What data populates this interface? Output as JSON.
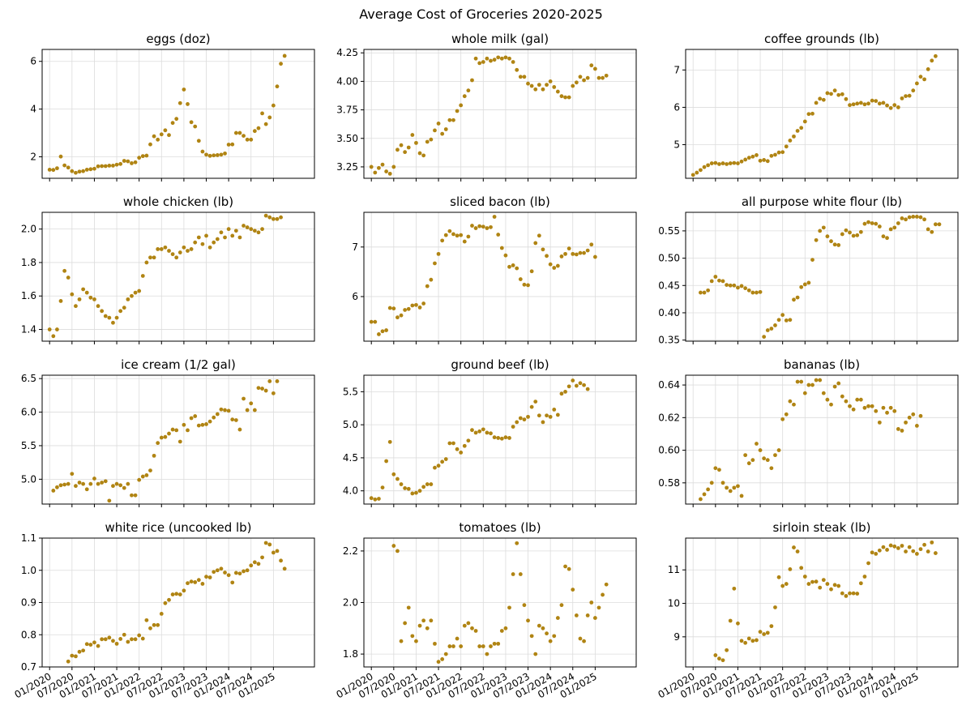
{
  "figure": {
    "title": "Average Cost of Groceries 2020-2025"
  },
  "colors": {
    "marker": "#b08413",
    "grid": "#dcdcdc",
    "axis": "#000000"
  },
  "chart_data": [
    {
      "type": "scatter",
      "title": "eggs (doz)",
      "xlim": [
        "2019-11",
        "2025-12"
      ],
      "ylim": [
        1.1,
        6.5
      ],
      "xticks": [
        "01/2020",
        "07/2020",
        "01/2021",
        "07/2021",
        "01/2022",
        "07/2022",
        "01/2023",
        "07/2023",
        "01/2024",
        "07/2024",
        "01/2025"
      ],
      "yticks": [
        2,
        4,
        6
      ],
      "grid": true,
      "x_start": "2020-01",
      "values": [
        1.46,
        1.45,
        1.52,
        2.01,
        1.64,
        1.55,
        1.4,
        1.33,
        1.38,
        1.4,
        1.46,
        1.48,
        1.5,
        1.6,
        1.61,
        1.61,
        1.63,
        1.63,
        1.67,
        1.7,
        1.83,
        1.81,
        1.73,
        1.77,
        1.96,
        2.03,
        2.05,
        2.52,
        2.86,
        2.72,
        2.94,
        3.11,
        2.91,
        3.42,
        3.59,
        4.25,
        4.82,
        4.21,
        3.45,
        3.27,
        2.67,
        2.22,
        2.09,
        2.04,
        2.06,
        2.07,
        2.09,
        2.14,
        2.51,
        2.52,
        3.0,
        3.0,
        2.88,
        2.72,
        2.72,
        3.08,
        3.2,
        3.82,
        3.37,
        3.65,
        4.15,
        4.95,
        5.9,
        6.23
      ]
    },
    {
      "type": "scatter",
      "title": "whole milk (gal)",
      "xlim": [
        "2019-11",
        "2025-12"
      ],
      "ylim": [
        3.15,
        4.28
      ],
      "xticks": [
        "01/2020",
        "07/2020",
        "01/2021",
        "07/2021",
        "01/2022",
        "07/2022",
        "01/2023",
        "07/2023",
        "01/2024",
        "07/2024",
        "01/2025"
      ],
      "yticks": [
        3.25,
        3.5,
        3.75,
        4.0,
        4.25
      ],
      "grid": true,
      "x_start": "2020-01",
      "values": [
        3.25,
        3.2,
        3.24,
        3.27,
        3.21,
        3.19,
        3.25,
        3.4,
        3.44,
        3.38,
        3.42,
        3.53,
        3.46,
        3.37,
        3.35,
        3.47,
        3.49,
        3.57,
        3.63,
        3.54,
        3.58,
        3.66,
        3.66,
        3.74,
        3.79,
        3.87,
        3.92,
        4.01,
        4.2,
        4.16,
        4.17,
        4.2,
        4.18,
        4.19,
        4.21,
        4.2,
        4.21,
        4.2,
        4.17,
        4.1,
        4.04,
        4.04,
        3.98,
        3.96,
        3.93,
        3.97,
        3.93,
        3.97,
        4.0,
        3.95,
        3.91,
        3.87,
        3.86,
        3.86,
        3.96,
        3.99,
        4.04,
        4.01,
        4.03,
        4.14,
        4.11,
        4.03,
        4.03,
        4.05
      ]
    },
    {
      "type": "scatter",
      "title": "coffee grounds (lb)",
      "xlim": [
        "2019-11",
        "2025-12"
      ],
      "ylim": [
        4.1,
        7.55
      ],
      "xticks": [
        "01/2020",
        "07/2020",
        "01/2021",
        "07/2021",
        "01/2022",
        "07/2022",
        "01/2023",
        "07/2023",
        "01/2024",
        "07/2024",
        "01/2025"
      ],
      "yticks": [
        5,
        6,
        7
      ],
      "grid": true,
      "x_start": "2020-01",
      "values": [
        4.19,
        4.25,
        4.32,
        4.4,
        4.45,
        4.5,
        4.51,
        4.48,
        4.5,
        4.48,
        4.5,
        4.51,
        4.5,
        4.55,
        4.6,
        4.65,
        4.68,
        4.72,
        4.57,
        4.59,
        4.56,
        4.7,
        4.73,
        4.79,
        4.8,
        4.95,
        5.11,
        5.22,
        5.37,
        5.45,
        5.62,
        5.82,
        5.83,
        6.12,
        6.23,
        6.2,
        6.38,
        6.36,
        6.45,
        6.33,
        6.35,
        6.22,
        6.06,
        6.08,
        6.1,
        6.12,
        6.08,
        6.1,
        6.18,
        6.17,
        6.1,
        6.12,
        6.05,
        5.98,
        6.06,
        6.0,
        6.24,
        6.3,
        6.31,
        6.45,
        6.64,
        6.82,
        6.75,
        7.02,
        7.25,
        7.37
      ]
    },
    {
      "type": "scatter",
      "title": "whole chicken (lb)",
      "xlim": [
        "2019-11",
        "2025-12"
      ],
      "ylim": [
        1.33,
        2.1
      ],
      "xticks": [
        "01/2020",
        "07/2020",
        "01/2021",
        "07/2021",
        "01/2022",
        "07/2022",
        "01/2023",
        "07/2023",
        "01/2024",
        "07/2024",
        "01/2025"
      ],
      "yticks": [
        1.4,
        1.6,
        1.8,
        2.0
      ],
      "grid": true,
      "x_start": "2020-01",
      "values": [
        1.4,
        1.36,
        1.4,
        1.57,
        1.75,
        1.71,
        1.61,
        1.54,
        1.58,
        1.64,
        1.62,
        1.59,
        1.58,
        1.54,
        1.51,
        1.48,
        1.47,
        1.44,
        1.47,
        1.51,
        1.53,
        1.58,
        1.6,
        1.62,
        1.63,
        1.72,
        1.8,
        1.83,
        1.83,
        1.88,
        1.88,
        1.89,
        1.87,
        1.85,
        1.83,
        1.86,
        1.89,
        1.87,
        1.88,
        1.92,
        1.95,
        1.91,
        1.96,
        1.89,
        1.92,
        1.94,
        1.98,
        1.95,
        2.0,
        1.96,
        1.99,
        1.95,
        2.02,
        2.01,
        2.0,
        1.99,
        1.98,
        2.0,
        2.08,
        2.07,
        2.06,
        2.06,
        2.07
      ]
    },
    {
      "type": "scatter",
      "title": "sliced bacon (lb)",
      "xlim": [
        "2019-11",
        "2025-12"
      ],
      "ylim": [
        5.1,
        7.7
      ],
      "xticks": [
        "01/2020",
        "07/2020",
        "01/2021",
        "07/2021",
        "01/2022",
        "07/2022",
        "01/2023",
        "07/2023",
        "01/2024",
        "07/2024",
        "01/2025"
      ],
      "yticks": [
        6,
        7
      ],
      "grid": true,
      "x_start": "2020-01",
      "values": [
        5.49,
        5.49,
        5.24,
        5.3,
        5.32,
        5.77,
        5.76,
        5.58,
        5.62,
        5.73,
        5.75,
        5.82,
        5.83,
        5.78,
        5.86,
        6.21,
        6.34,
        6.67,
        6.86,
        7.13,
        7.24,
        7.32,
        7.26,
        7.23,
        7.24,
        7.11,
        7.21,
        7.43,
        7.38,
        7.42,
        7.41,
        7.38,
        7.4,
        7.61,
        7.25,
        6.98,
        6.83,
        6.6,
        6.63,
        6.57,
        6.35,
        6.24,
        6.23,
        6.51,
        7.08,
        7.23,
        6.95,
        6.82,
        6.65,
        6.58,
        6.62,
        6.81,
        6.86,
        6.97,
        6.86,
        6.85,
        6.88,
        6.88,
        6.93,
        7.05,
        6.8
      ]
    },
    {
      "type": "scatter",
      "title": "all purpose white flour (lb)",
      "xlim": [
        "2019-11",
        "2025-12"
      ],
      "ylim": [
        0.348,
        0.584
      ],
      "xticks": [
        "01/2020",
        "07/2020",
        "01/2021",
        "07/2021",
        "01/2022",
        "07/2022",
        "01/2023",
        "07/2023",
        "01/2024",
        "07/2024",
        "01/2025"
      ],
      "yticks": [
        0.35,
        0.4,
        0.45,
        0.5,
        0.55
      ],
      "grid": true,
      "x_start": "2020-03",
      "values": [
        0.437,
        0.437,
        0.441,
        0.458,
        0.466,
        0.459,
        0.458,
        0.451,
        0.45,
        0.45,
        0.446,
        0.449,
        0.445,
        0.441,
        0.437,
        0.437,
        0.438,
        0.356,
        0.368,
        0.371,
        0.377,
        0.387,
        0.396,
        0.386,
        0.387,
        0.424,
        0.428,
        0.447,
        0.452,
        0.455,
        0.497,
        0.533,
        0.55,
        0.556,
        0.54,
        0.531,
        0.525,
        0.524,
        0.544,
        0.551,
        0.547,
        0.541,
        0.542,
        0.548,
        0.563,
        0.566,
        0.564,
        0.563,
        0.558,
        0.54,
        0.537,
        0.553,
        0.556,
        0.564,
        0.573,
        0.571,
        0.575,
        0.576,
        0.576,
        0.575,
        0.571,
        0.553,
        0.548,
        0.562,
        0.562
      ]
    },
    {
      "type": "scatter",
      "title": "ice cream (1/2 gal)",
      "xlim": [
        "2019-11",
        "2025-12"
      ],
      "ylim": [
        4.63,
        6.55
      ],
      "xticks": [
        "01/2020",
        "07/2020",
        "01/2021",
        "07/2021",
        "01/2022",
        "07/2022",
        "01/2023",
        "07/2023",
        "01/2024",
        "07/2024",
        "01/2025"
      ],
      "yticks": [
        5.0,
        5.5,
        6.0,
        6.5
      ],
      "grid": true,
      "x_start": "2020-02",
      "values": [
        4.83,
        4.88,
        4.91,
        4.92,
        4.93,
        5.08,
        4.9,
        4.95,
        4.93,
        4.85,
        4.93,
        5.01,
        4.93,
        4.95,
        4.97,
        4.68,
        4.9,
        4.93,
        4.91,
        4.87,
        4.93,
        4.76,
        4.76,
        4.99,
        5.04,
        5.06,
        5.13,
        5.35,
        5.54,
        5.62,
        5.63,
        5.68,
        5.74,
        5.73,
        5.56,
        5.81,
        5.73,
        5.91,
        5.94,
        5.8,
        5.81,
        5.82,
        5.86,
        5.92,
        5.97,
        6.04,
        6.03,
        6.02,
        5.89,
        5.88,
        5.74,
        6.2,
        6.03,
        6.13,
        6.03,
        6.36,
        6.35,
        6.32,
        6.46,
        6.28,
        6.46
      ]
    },
    {
      "type": "scatter",
      "title": "ground beef (lb)",
      "xlim": [
        "2019-11",
        "2025-12"
      ],
      "ylim": [
        3.8,
        5.75
      ],
      "xticks": [
        "01/2020",
        "07/2020",
        "01/2021",
        "07/2021",
        "01/2022",
        "07/2022",
        "01/2023",
        "07/2023",
        "01/2024",
        "07/2024",
        "01/2025"
      ],
      "yticks": [
        4.0,
        4.5,
        5.0,
        5.5
      ],
      "grid": true,
      "x_start": "2020-01",
      "values": [
        3.89,
        3.87,
        3.88,
        4.05,
        4.45,
        4.74,
        4.25,
        4.18,
        4.1,
        4.04,
        4.03,
        3.96,
        3.97,
        4.0,
        4.06,
        4.1,
        4.1,
        4.35,
        4.38,
        4.44,
        4.48,
        4.72,
        4.72,
        4.63,
        4.58,
        4.68,
        4.76,
        4.92,
        4.88,
        4.9,
        4.93,
        4.88,
        4.87,
        4.81,
        4.8,
        4.79,
        4.81,
        4.8,
        4.97,
        5.04,
        5.1,
        5.08,
        5.12,
        5.27,
        5.35,
        5.14,
        5.04,
        5.14,
        5.12,
        5.23,
        5.15,
        5.47,
        5.5,
        5.58,
        5.67,
        5.59,
        5.63,
        5.6,
        5.54
      ]
    },
    {
      "type": "scatter",
      "title": "bananas (lb)",
      "xlim": [
        "2019-11",
        "2025-12"
      ],
      "ylim": [
        0.567,
        0.646
      ],
      "xticks": [
        "01/2020",
        "07/2020",
        "01/2021",
        "07/2021",
        "01/2022",
        "07/2022",
        "01/2023",
        "07/2023",
        "01/2024",
        "07/2024",
        "01/2025"
      ],
      "yticks": [
        0.58,
        0.6,
        0.62,
        0.64
      ],
      "grid": true,
      "x_start": "2020-03",
      "values": [
        0.57,
        0.573,
        0.576,
        0.58,
        0.589,
        0.588,
        0.58,
        0.577,
        0.575,
        0.577,
        0.578,
        0.572,
        0.597,
        0.592,
        0.594,
        0.604,
        0.6,
        0.595,
        0.594,
        0.589,
        0.597,
        0.6,
        0.619,
        0.622,
        0.63,
        0.628,
        0.642,
        0.642,
        0.635,
        0.64,
        0.64,
        0.643,
        0.643,
        0.635,
        0.631,
        0.628,
        0.639,
        0.641,
        0.633,
        0.63,
        0.627,
        0.625,
        0.631,
        0.631,
        0.626,
        0.627,
        0.627,
        0.624,
        0.617,
        0.626,
        0.623,
        0.626,
        0.624,
        0.613,
        0.612,
        0.617,
        0.62,
        0.622,
        0.615,
        0.621
      ]
    },
    {
      "type": "scatter",
      "title": "white rice (uncooked lb)",
      "xlim": [
        "2019-11",
        "2025-12"
      ],
      "ylim": [
        0.7,
        1.1
      ],
      "xticks": [
        "01/2020",
        "07/2020",
        "01/2021",
        "07/2021",
        "01/2022",
        "07/2022",
        "01/2023",
        "07/2023",
        "01/2024",
        "07/2024",
        "01/2025"
      ],
      "yticks": [
        0.7,
        0.8,
        0.9,
        1.0,
        1.1
      ],
      "grid": true,
      "x_start": "2020-06",
      "values": [
        0.717,
        0.735,
        0.733,
        0.747,
        0.751,
        0.771,
        0.769,
        0.776,
        0.765,
        0.786,
        0.786,
        0.791,
        0.781,
        0.772,
        0.787,
        0.8,
        0.778,
        0.786,
        0.786,
        0.798,
        0.788,
        0.845,
        0.82,
        0.83,
        0.83,
        0.865,
        0.898,
        0.908,
        0.925,
        0.927,
        0.925,
        0.937,
        0.96,
        0.965,
        0.963,
        0.97,
        0.958,
        0.98,
        0.978,
        0.995,
        1.0,
        1.005,
        0.993,
        0.985,
        0.962,
        0.992,
        0.99,
        0.997,
        1.0,
        1.015,
        1.025,
        1.02,
        1.04,
        1.085,
        1.08,
        1.055,
        1.06,
        1.03,
        1.005
      ]
    },
    {
      "type": "scatter",
      "title": "tomatoes (lb)",
      "xlim": [
        "2019-11",
        "2025-12"
      ],
      "ylim": [
        1.75,
        2.25
      ],
      "xticks": [
        "01/2020",
        "07/2020",
        "01/2021",
        "07/2021",
        "01/2022",
        "07/2022",
        "01/2023",
        "07/2023",
        "01/2024",
        "07/2024",
        "01/2025"
      ],
      "yticks": [
        1.8,
        2.0,
        2.2
      ],
      "grid": true,
      "x_start": "2020-07",
      "values": [
        2.22,
        2.2,
        1.85,
        1.92,
        1.98,
        1.87,
        1.85,
        1.91,
        1.93,
        1.9,
        1.93,
        1.84,
        1.77,
        1.78,
        1.8,
        1.83,
        1.83,
        1.86,
        1.83,
        1.91,
        1.92,
        1.9,
        1.89,
        1.83,
        1.83,
        1.8,
        1.83,
        1.84,
        1.84,
        1.89,
        1.9,
        1.98,
        2.11,
        2.23,
        2.11,
        1.99,
        1.93,
        1.87,
        1.8,
        1.91,
        1.9,
        1.88,
        1.85,
        1.87,
        1.94,
        1.99,
        2.14,
        2.13,
        2.05,
        1.95,
        1.86,
        1.85,
        1.95,
        2.0,
        1.94,
        1.98,
        2.03,
        2.07
      ]
    },
    {
      "type": "scatter",
      "title": "sirloin steak (lb)",
      "xlim": [
        "2019-11",
        "2025-12"
      ],
      "ylim": [
        8.1,
        11.95
      ],
      "xticks": [
        "01/2020",
        "07/2020",
        "01/2021",
        "07/2021",
        "01/2022",
        "07/2022",
        "01/2023",
        "07/2023",
        "01/2024",
        "07/2024",
        "01/2025"
      ],
      "yticks": [
        9,
        10,
        11
      ],
      "grid": true,
      "x_start": "2020-07",
      "values": [
        8.45,
        8.35,
        8.3,
        8.6,
        9.48,
        10.44,
        9.4,
        8.88,
        8.82,
        8.95,
        8.88,
        8.9,
        9.15,
        9.08,
        9.12,
        9.32,
        9.88,
        10.78,
        10.52,
        10.58,
        11.02,
        11.67,
        11.55,
        11.06,
        10.8,
        10.58,
        10.64,
        10.65,
        10.47,
        10.7,
        10.58,
        10.42,
        10.55,
        10.52,
        10.3,
        10.22,
        10.3,
        10.3,
        10.29,
        10.6,
        10.8,
        11.2,
        11.52,
        11.48,
        11.58,
        11.68,
        11.6,
        11.73,
        11.7,
        11.65,
        11.72,
        11.55,
        11.68,
        11.56,
        11.48,
        11.62,
        11.75,
        11.55,
        11.82,
        11.5
      ]
    }
  ]
}
